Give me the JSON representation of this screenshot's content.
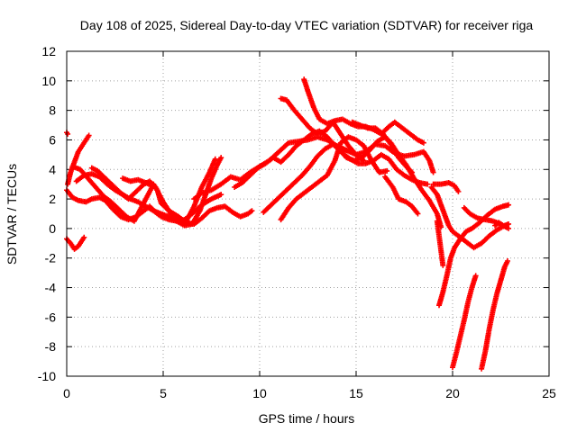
{
  "chart_data": {
    "type": "scatter",
    "title": "Day 108 of 2025, Sidereal Day-to-day VTEC variation (SDTVAR) for receiver riga",
    "xlabel": "GPS time / hours",
    "ylabel": "SDTVAR / TECUs",
    "xlim": [
      0,
      25
    ],
    "ylim": [
      -10,
      12
    ],
    "xticks": [
      "0",
      "5",
      "10",
      "15",
      "20",
      "25"
    ],
    "yticks": [
      "-10",
      "-8",
      "-6",
      "-4",
      "-2",
      "0",
      "2",
      "4",
      "6",
      "8",
      "10",
      "12"
    ],
    "grid": true,
    "marker": "plus",
    "color": "#ff0000",
    "series": [
      {
        "points": [
          [
            0,
            6.5
          ],
          [
            0.05,
            6.4
          ]
        ]
      },
      {
        "points": [
          [
            0,
            -0.7
          ],
          [
            0.2,
            -1.0
          ],
          [
            0.4,
            -1.4
          ],
          [
            0.6,
            -1.2
          ],
          [
            0.8,
            -0.8
          ],
          [
            0.9,
            -0.6
          ]
        ]
      },
      {
        "points": [
          [
            0.05,
            3.0
          ],
          [
            0.2,
            3.8
          ],
          [
            0.4,
            4.5
          ],
          [
            0.6,
            5.2
          ],
          [
            0.8,
            5.6
          ],
          [
            1.0,
            6.0
          ],
          [
            1.15,
            6.3
          ]
        ]
      },
      {
        "points": [
          [
            0,
            2.6
          ],
          [
            0.3,
            2.1
          ],
          [
            0.6,
            1.9
          ],
          [
            1.0,
            1.8
          ],
          [
            1.3,
            2.0
          ],
          [
            1.7,
            2.1
          ],
          [
            2.0,
            1.9
          ],
          [
            2.4,
            1.3
          ],
          [
            2.8,
            0.8
          ],
          [
            3.2,
            0.6
          ],
          [
            3.6,
            0.8
          ],
          [
            4.0,
            1.2
          ],
          [
            4.3,
            1.5
          ],
          [
            4.6,
            1.1
          ],
          [
            4.9,
            0.8
          ],
          [
            5.3,
            0.6
          ],
          [
            5.7,
            0.5
          ],
          [
            6.1,
            0.6
          ],
          [
            6.5,
            1.0
          ],
          [
            7.0,
            1.6
          ],
          [
            7.5,
            2.0
          ],
          [
            8.0,
            2.3
          ]
        ]
      },
      {
        "points": [
          [
            0.3,
            4.2
          ],
          [
            0.7,
            4.0
          ],
          [
            1.1,
            3.4
          ],
          [
            1.5,
            2.8
          ],
          [
            1.9,
            2.2
          ],
          [
            2.3,
            1.8
          ],
          [
            2.7,
            1.3
          ],
          [
            3.1,
            0.8
          ],
          [
            3.5,
            0.5
          ],
          [
            3.9,
            1.5
          ],
          [
            4.3,
            2.5
          ],
          [
            4.5,
            3.0
          ],
          [
            4.7,
            2.6
          ],
          [
            4.9,
            1.7
          ],
          [
            5.3,
            1.2
          ],
          [
            5.8,
            0.8
          ],
          [
            6.2,
            0.4
          ],
          [
            6.6,
            0.3
          ],
          [
            7.0,
            0.7
          ],
          [
            7.4,
            1.2
          ],
          [
            7.8,
            1.4
          ],
          [
            8.2,
            1.5
          ],
          [
            8.6,
            1.1
          ],
          [
            9.0,
            0.8
          ],
          [
            9.4,
            1.0
          ],
          [
            9.6,
            1.2
          ]
        ]
      },
      {
        "points": [
          [
            0.5,
            3.2
          ],
          [
            0.9,
            3.6
          ],
          [
            1.3,
            3.7
          ],
          [
            1.7,
            3.5
          ],
          [
            2.1,
            3.0
          ],
          [
            2.5,
            2.6
          ],
          [
            2.9,
            2.3
          ],
          [
            3.3,
            2.0
          ],
          [
            3.7,
            1.8
          ],
          [
            4.1,
            1.5
          ],
          [
            4.5,
            1.2
          ],
          [
            4.9,
            1.0
          ],
          [
            5.3,
            0.8
          ],
          [
            5.7,
            0.5
          ],
          [
            6.1,
            0.2
          ],
          [
            6.5,
            0.3
          ],
          [
            6.9,
            1.2
          ],
          [
            7.2,
            2.3
          ],
          [
            7.5,
            3.4
          ],
          [
            7.8,
            4.3
          ],
          [
            8.0,
            4.8
          ]
        ]
      },
      {
        "points": [
          [
            1.3,
            4.1
          ],
          [
            1.6,
            3.9
          ],
          [
            2.0,
            3.4
          ],
          [
            2.4,
            2.9
          ],
          [
            2.8,
            2.4
          ],
          [
            3.2,
            2.0
          ],
          [
            3.6,
            2.5
          ],
          [
            4.0,
            3.0
          ],
          [
            4.3,
            3.2
          ],
          [
            4.6,
            2.8
          ],
          [
            5.0,
            1.8
          ],
          [
            5.4,
            1.0
          ],
          [
            5.8,
            0.6
          ],
          [
            6.2,
            0.5
          ],
          [
            6.6,
            1.5
          ],
          [
            7.0,
            2.8
          ],
          [
            7.4,
            3.8
          ],
          [
            7.7,
            4.7
          ]
        ]
      },
      {
        "points": [
          [
            2.9,
            3.4
          ],
          [
            3.3,
            3.2
          ],
          [
            3.7,
            3.3
          ],
          [
            4.1,
            3.1
          ],
          [
            4.4,
            2.9
          ]
        ]
      },
      {
        "points": [
          [
            6.6,
            2.0
          ],
          [
            7.0,
            2.4
          ],
          [
            7.5,
            2.6
          ],
          [
            8.0,
            3.0
          ],
          [
            8.5,
            3.5
          ],
          [
            9.0,
            3.3
          ],
          [
            9.5,
            3.8
          ],
          [
            10.0,
            4.2
          ],
          [
            10.5,
            4.6
          ],
          [
            11.0,
            5.2
          ],
          [
            11.5,
            5.8
          ],
          [
            12.0,
            5.9
          ],
          [
            12.5,
            6.0
          ],
          [
            13.0,
            6.2
          ],
          [
            13.5,
            6.0
          ],
          [
            14.0,
            5.6
          ],
          [
            14.5,
            5.3
          ],
          [
            15.0,
            5.0
          ],
          [
            15.5,
            5.2
          ],
          [
            16.0,
            5.7
          ],
          [
            16.5,
            5.6
          ],
          [
            17.0,
            5.1
          ],
          [
            17.5,
            4.9
          ],
          [
            18.0,
            5.0
          ],
          [
            18.5,
            5.2
          ],
          [
            18.8,
            4.6
          ],
          [
            19.0,
            3.8
          ]
        ]
      },
      {
        "points": [
          [
            8.7,
            2.8
          ],
          [
            9.1,
            3.1
          ],
          [
            9.5,
            3.6
          ],
          [
            9.9,
            4.1
          ],
          [
            10.3,
            4.4
          ],
          [
            10.7,
            4.8
          ],
          [
            11.1,
            4.5
          ],
          [
            11.5,
            5.0
          ],
          [
            11.9,
            5.6
          ],
          [
            12.3,
            6.0
          ],
          [
            12.7,
            6.4
          ],
          [
            13.1,
            6.6
          ],
          [
            13.5,
            6.2
          ],
          [
            13.9,
            5.6
          ],
          [
            14.3,
            5.1
          ],
          [
            14.7,
            4.7
          ],
          [
            15.1,
            4.4
          ],
          [
            15.5,
            4.4
          ],
          [
            15.9,
            4.6
          ],
          [
            16.3,
            5.0
          ],
          [
            16.7,
            4.7
          ],
          [
            17.1,
            4.0
          ],
          [
            17.5,
            3.6
          ],
          [
            17.9,
            3.3
          ],
          [
            18.3,
            3.1
          ],
          [
            18.7,
            3.0
          ]
        ]
      },
      {
        "points": [
          [
            10.2,
            1.1
          ],
          [
            10.6,
            1.6
          ],
          [
            11.0,
            2.1
          ],
          [
            11.4,
            2.6
          ],
          [
            11.8,
            3.1
          ],
          [
            12.2,
            3.6
          ],
          [
            12.6,
            4.2
          ],
          [
            13.0,
            4.9
          ],
          [
            13.4,
            5.4
          ],
          [
            13.8,
            5.7
          ],
          [
            14.1,
            5.4
          ],
          [
            14.5,
            4.8
          ],
          [
            14.9,
            4.6
          ],
          [
            15.3,
            4.8
          ],
          [
            15.7,
            5.3
          ],
          [
            16.1,
            5.9
          ],
          [
            16.5,
            6.2
          ],
          [
            16.8,
            5.8
          ],
          [
            17.2,
            5.0
          ],
          [
            17.6,
            4.3
          ],
          [
            18.0,
            3.4
          ],
          [
            18.4,
            2.6
          ],
          [
            18.8,
            1.9
          ],
          [
            19.2,
            1.0
          ],
          [
            19.4,
            0.1
          ]
        ]
      },
      {
        "points": [
          [
            11.1,
            0.6
          ],
          [
            11.5,
            1.4
          ],
          [
            11.9,
            2.0
          ],
          [
            12.3,
            2.4
          ],
          [
            12.7,
            2.8
          ],
          [
            13.1,
            3.2
          ],
          [
            13.5,
            3.6
          ],
          [
            13.9,
            4.6
          ],
          [
            14.2,
            5.8
          ],
          [
            14.6,
            6.2
          ],
          [
            15.0,
            6.0
          ],
          [
            15.4,
            5.6
          ],
          [
            15.8,
            4.6
          ],
          [
            16.2,
            3.8
          ],
          [
            16.6,
            3.9
          ]
        ]
      },
      {
        "points": [
          [
            11.1,
            8.8
          ],
          [
            11.4,
            8.7
          ],
          [
            11.8,
            8.0
          ],
          [
            12.2,
            7.4
          ],
          [
            12.6,
            6.8
          ],
          [
            13.0,
            6.4
          ],
          [
            13.4,
            6.6
          ],
          [
            13.8,
            7.2
          ],
          [
            14.2,
            6.4
          ],
          [
            14.6,
            5.6
          ],
          [
            15.0,
            5.0
          ],
          [
            15.4,
            4.6
          ]
        ]
      },
      {
        "points": [
          [
            12.3,
            10.1
          ],
          [
            12.5,
            9.3
          ],
          [
            12.8,
            8.2
          ],
          [
            13.1,
            7.4
          ],
          [
            13.5,
            7.1
          ],
          [
            13.9,
            7.3
          ],
          [
            14.3,
            7.4
          ],
          [
            14.7,
            7.1
          ],
          [
            15.1,
            6.9
          ],
          [
            15.5,
            6.9
          ],
          [
            15.9,
            6.7
          ],
          [
            16.3,
            6.4
          ],
          [
            16.7,
            6.9
          ],
          [
            17.0,
            7.2
          ],
          [
            17.4,
            6.8
          ],
          [
            17.8,
            6.4
          ],
          [
            18.2,
            6.0
          ],
          [
            18.5,
            5.8
          ]
        ]
      },
      {
        "points": [
          [
            14.8,
            7.2
          ],
          [
            15.2,
            7.0
          ],
          [
            15.6,
            6.8
          ],
          [
            16.0,
            6.8
          ],
          [
            16.4,
            6.4
          ],
          [
            16.8,
            5.7
          ],
          [
            17.2,
            4.8
          ],
          [
            17.6,
            4.2
          ],
          [
            17.9,
            3.8
          ]
        ]
      },
      {
        "points": [
          [
            16.5,
            3.5
          ],
          [
            16.9,
            2.8
          ],
          [
            17.2,
            2.0
          ],
          [
            17.6,
            1.8
          ],
          [
            17.9,
            1.5
          ],
          [
            18.2,
            1.0
          ]
        ]
      },
      {
        "points": [
          [
            18.9,
            2.8
          ],
          [
            19.2,
            2.3
          ],
          [
            19.4,
            1.6
          ],
          [
            19.6,
            0.9
          ],
          [
            19.8,
            0.2
          ],
          [
            20.0,
            -0.2
          ],
          [
            20.4,
            -0.6
          ],
          [
            20.8,
            -1.0
          ],
          [
            21.1,
            -1.3
          ],
          [
            21.5,
            -1.0
          ],
          [
            21.9,
            -0.5
          ],
          [
            22.3,
            -0.1
          ],
          [
            22.7,
            0.2
          ],
          [
            22.9,
            0.3
          ]
        ]
      },
      {
        "points": [
          [
            19.3,
            -5.2
          ],
          [
            19.5,
            -4.3
          ],
          [
            19.7,
            -3.2
          ],
          [
            19.9,
            -2.0
          ],
          [
            20.1,
            -1.3
          ],
          [
            20.4,
            -0.7
          ],
          [
            20.7,
            -0.2
          ],
          [
            21.0,
            0.0
          ],
          [
            21.4,
            0.4
          ],
          [
            21.8,
            0.9
          ],
          [
            22.2,
            1.3
          ],
          [
            22.6,
            1.5
          ],
          [
            22.9,
            1.6
          ]
        ]
      },
      {
        "points": [
          [
            19.2,
            0.5
          ],
          [
            19.3,
            -0.5
          ],
          [
            19.4,
            -1.5
          ],
          [
            19.5,
            -2.5
          ]
        ]
      },
      {
        "points": [
          [
            19.0,
            3.0
          ],
          [
            19.4,
            3.0
          ],
          [
            19.8,
            3.1
          ],
          [
            20.1,
            2.9
          ],
          [
            20.3,
            2.5
          ]
        ]
      },
      {
        "points": [
          [
            20.6,
            1.4
          ],
          [
            20.9,
            1.0
          ],
          [
            21.3,
            0.7
          ],
          [
            21.7,
            0.6
          ],
          [
            22.1,
            0.5
          ],
          [
            22.5,
            0.3
          ],
          [
            22.9,
            0.0
          ]
        ]
      },
      {
        "points": [
          [
            20.0,
            -9.4
          ],
          [
            20.2,
            -8.4
          ],
          [
            20.4,
            -7.3
          ],
          [
            20.6,
            -6.2
          ],
          [
            20.8,
            -5.0
          ],
          [
            21.0,
            -4.0
          ],
          [
            21.2,
            -3.2
          ]
        ]
      },
      {
        "points": [
          [
            21.5,
            -9.5
          ],
          [
            21.7,
            -8.3
          ],
          [
            21.9,
            -6.8
          ],
          [
            22.1,
            -5.5
          ],
          [
            22.3,
            -4.4
          ],
          [
            22.5,
            -3.5
          ],
          [
            22.7,
            -2.6
          ],
          [
            22.85,
            -2.2
          ]
        ]
      },
      {
        "points": [
          [
            22.2,
            0.2
          ],
          [
            22.4,
            0.4
          ],
          [
            22.6,
            0.2
          ],
          [
            22.8,
            0.1
          ]
        ]
      }
    ]
  }
}
